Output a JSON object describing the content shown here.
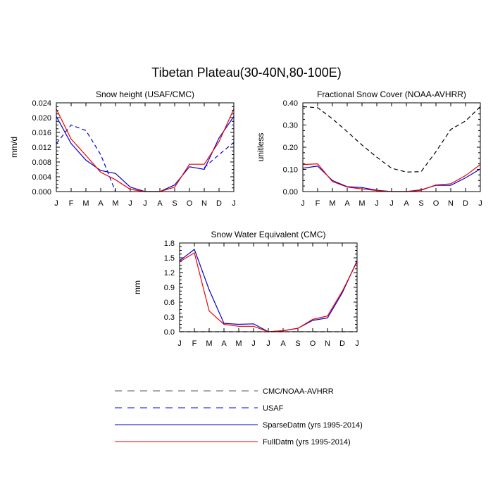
{
  "title": "Tibetan Plateau(30-40N,80-100E)",
  "colors": {
    "cmc": "#000000",
    "usaf": "#0000dd",
    "sparse": "#0000cc",
    "full": "#ee0000"
  },
  "months": [
    "J",
    "F",
    "M",
    "A",
    "M",
    "J",
    "J",
    "A",
    "S",
    "O",
    "N",
    "D",
    "J"
  ],
  "chart_data": [
    {
      "type": "line",
      "title": "Snow height (USAF/CMC)",
      "ylabel": "mm/d",
      "xlabel": "",
      "categories": [
        "J",
        "F",
        "M",
        "A",
        "M",
        "J",
        "J",
        "A",
        "S",
        "O",
        "N",
        "D",
        "J"
      ],
      "ylim": [
        0,
        0.024
      ],
      "yticks": [
        "0.000",
        "0.004",
        "0.008",
        "0.012",
        "0.016",
        "0.020",
        "0.024"
      ],
      "series": [
        {
          "name": "USAF",
          "style": "dashed",
          "color": "#0000dd",
          "values": [
            0.013,
            0.018,
            0.0165,
            0.01,
            0.0,
            null,
            null,
            null,
            null,
            null,
            0.0065,
            0.01,
            0.0133
          ]
        },
        {
          "name": "SparseDatm (yrs 1995-2014)",
          "style": "solid",
          "color": "#0000cc",
          "values": [
            0.0203,
            0.013,
            0.0085,
            0.0057,
            0.0049,
            0.0012,
            0.0,
            0.0,
            0.0018,
            0.0067,
            0.006,
            0.0145,
            0.0203
          ]
        },
        {
          "name": "FullDatm (yrs 1995-2014)",
          "style": "solid",
          "color": "#ee0000",
          "values": [
            0.0223,
            0.0142,
            0.0098,
            0.0052,
            0.0032,
            0.0006,
            0.0,
            0.0,
            0.0012,
            0.0074,
            0.0074,
            0.0135,
            0.0223
          ]
        }
      ]
    },
    {
      "type": "line",
      "title": "Fractional Snow Cover (NOAA-AVHRR)",
      "ylabel": "unitless",
      "xlabel": "",
      "categories": [
        "J",
        "F",
        "M",
        "A",
        "M",
        "J",
        "J",
        "A",
        "S",
        "O",
        "N",
        "D",
        "J"
      ],
      "ylim": [
        0,
        0.4
      ],
      "yticks": [
        "0.00",
        "0.10",
        "0.20",
        "0.30",
        "0.40"
      ],
      "series": [
        {
          "name": "CMC/NOAA-AVHRR",
          "style": "dashed",
          "color": "#000000",
          "values": [
            0.383,
            0.378,
            0.328,
            0.27,
            0.21,
            0.155,
            0.105,
            0.088,
            0.09,
            0.18,
            0.28,
            0.318,
            0.383
          ]
        },
        {
          "name": "SparseDatm (yrs 1995-2014)",
          "style": "solid",
          "color": "#0000cc",
          "values": [
            0.105,
            0.115,
            0.05,
            0.022,
            0.018,
            0.006,
            0.0,
            0.0,
            0.008,
            0.028,
            0.028,
            0.062,
            0.102
          ]
        },
        {
          "name": "FullDatm (yrs 1995-2014)",
          "style": "solid",
          "color": "#ee0000",
          "values": [
            0.122,
            0.125,
            0.045,
            0.02,
            0.012,
            0.004,
            0.0,
            0.0,
            0.006,
            0.03,
            0.035,
            0.072,
            0.122
          ]
        }
      ]
    },
    {
      "type": "line",
      "title": "Snow Water Equivalent (CMC)",
      "ylabel": "mm",
      "xlabel": "",
      "categories": [
        "J",
        "F",
        "M",
        "A",
        "M",
        "J",
        "J",
        "A",
        "S",
        "O",
        "N",
        "D",
        "J"
      ],
      "ylim": [
        0,
        1.8
      ],
      "yticks": [
        "0.0",
        "0.3",
        "0.6",
        "0.9",
        "1.2",
        "1.5",
        "1.8"
      ],
      "series": [
        {
          "name": "CMC/NOAA-AVHRR",
          "style": "dashed",
          "color": "#000000",
          "values": [
            0,
            0,
            0,
            0,
            0,
            0,
            0,
            0,
            0,
            0,
            0,
            0,
            0
          ]
        },
        {
          "name": "SparseDatm (yrs 1995-2014)",
          "style": "solid",
          "color": "#0000cc",
          "values": [
            1.44,
            1.67,
            0.85,
            0.17,
            0.15,
            0.16,
            0.0,
            0.02,
            0.07,
            0.23,
            0.28,
            0.79,
            1.44
          ]
        },
        {
          "name": "FullDatm (yrs 1995-2014)",
          "style": "solid",
          "color": "#ee0000",
          "values": [
            1.42,
            1.6,
            0.42,
            0.15,
            0.11,
            0.11,
            0.0,
            0.02,
            0.07,
            0.25,
            0.32,
            0.82,
            1.42
          ]
        }
      ]
    }
  ],
  "legend": [
    {
      "label": "CMC/NOAA-AVHRR",
      "style": "dashed",
      "color": "#555555"
    },
    {
      "label": "USAF",
      "style": "dashed",
      "color": "#0000dd"
    },
    {
      "label": "SparseDatm (yrs 1995-2014)",
      "style": "solid",
      "color": "#0000cc"
    },
    {
      "label": "FullDatm (yrs 1995-2014)",
      "style": "solid",
      "color": "#ee0000"
    }
  ]
}
